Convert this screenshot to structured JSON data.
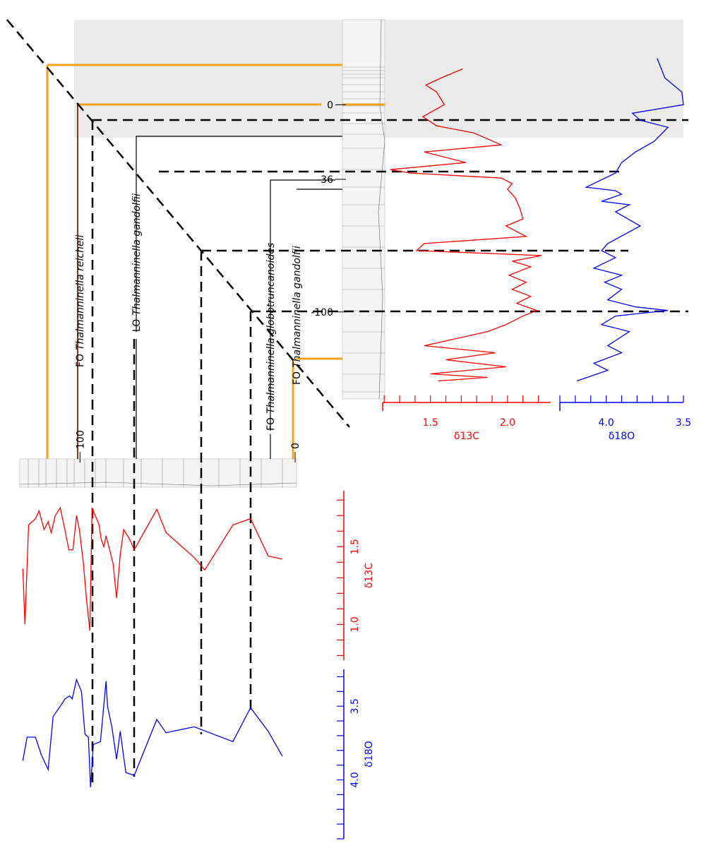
{
  "chart_data": [
    {
      "type": "line",
      "orientation": "vertical",
      "axis_label": "δ13C",
      "color": "#ff0000",
      "x": [
        17.3,
        13.6,
        9.5,
        6.1,
        0,
        -5.8,
        -10.2,
        -13.6,
        -19.4,
        -22.8,
        -27.9,
        -31.3,
        -33,
        -35.4,
        -38.1,
        -40.8,
        -44.9,
        -50,
        -55.1,
        -58.5,
        -63.6,
        -67,
        -70.4,
        -72.8,
        -75.5,
        -78.2,
        -82.3,
        -85.7,
        -89.1,
        -92.5,
        -95.9,
        -99.3,
        -102,
        -106.1,
        -109.5,
        -116.3,
        -119.7,
        -123.1,
        -126.5,
        -129.9,
        -131.6,
        -133.3
      ],
      "values": [
        1.71,
        1.59,
        1.47,
        1.54,
        1.59,
        1.45,
        1.54,
        1.78,
        1.96,
        1.46,
        1.73,
        1.24,
        1.37,
        1.96,
        2.03,
        2.0,
        2.05,
        2.08,
        2.1,
        1.99,
        2.12,
        1.46,
        1.41,
        2.22,
        2.03,
        2.15,
        2.01,
        2.12,
        2.03,
        2.15,
        2.06,
        2.19,
        2.1,
        1.99,
        1.87,
        1.46,
        1.92,
        1.6,
        1.99,
        1.5,
        1.87,
        1.55
      ],
      "xlim": [
        41,
        -142
      ],
      "xticks": [
        0,
        -36,
        -100
      ],
      "ylim": [
        1.19,
        2.28
      ],
      "yticks": [
        1.5,
        {
          "value": 2,
          "label": "2.0"
        }
      ],
      "yminor": [
        1.2,
        1.3,
        1.4,
        1.5,
        1.6,
        1.7,
        1.8,
        1.9,
        2.0,
        2.1,
        2.2
      ]
    },
    {
      "type": "line",
      "orientation": "vertical",
      "axis_label": "δ18O",
      "color": "#0000ff",
      "x": [
        22.4,
        12.9,
        6.1,
        0,
        -4.1,
        -7.5,
        -10.9,
        -17.7,
        -22.8,
        -27.9,
        -33,
        -39.8,
        -41.5,
        -43.2,
        -46.6,
        -48.3,
        -51.7,
        -58.5,
        -67,
        -70.4,
        -73.8,
        -78.9,
        -82.3,
        -85.7,
        -89.1,
        -94.2,
        -97.6,
        -99.3,
        -102,
        -106.1,
        -109.5,
        -116.3,
        -119.7,
        -124.8,
        -128.2,
        -133.3
      ],
      "values": [
        3.67,
        3.62,
        3.51,
        3.5,
        3.83,
        3.78,
        3.6,
        3.69,
        3.81,
        3.9,
        3.94,
        4.13,
        3.94,
        3.9,
        4.03,
        3.85,
        3.94,
        3.78,
        3.99,
        4.03,
        3.94,
        4.08,
        3.9,
        4.01,
        3.9,
        3.99,
        3.81,
        3.6,
        3.94,
        4.03,
        3.85,
        3.99,
        3.9,
        4.08,
        3.99,
        4.19
      ],
      "xlim": [
        41,
        -142
      ],
      "ylim": [
        4.3,
        3.5
      ],
      "yticks": [
        {
          "value": 4,
          "label": "4.0"
        },
        3.5
      ],
      "yminor": [
        4.3,
        4.2,
        4.1,
        4.0,
        3.9,
        3.8,
        3.7,
        3.6,
        3.5
      ]
    },
    {
      "type": "line",
      "orientation": "horizontal",
      "axis_label": "δ13C",
      "color": "#ff0000",
      "x": [
        126.6,
        125.6,
        123.9,
        120.7,
        119,
        116.7,
        114.8,
        113.4,
        111.5,
        109.2,
        107.5,
        105.2,
        103.3,
        101.6,
        100.3,
        98.4,
        97,
        95.4,
        94.4,
        91.1,
        90.2,
        88.9,
        87.9,
        86.2,
        84.6,
        83,
        81.3,
        79.7,
        77,
        74.8,
        64.3,
        60,
        46.9,
        42,
        28.9,
        20.7,
        12.5,
        5.9
      ],
      "values": [
        1.36,
        1.0,
        1.64,
        1.68,
        1.73,
        1.61,
        1.66,
        1.59,
        1.7,
        1.75,
        1.64,
        1.48,
        1.48,
        1.7,
        1.61,
        1.39,
        1.16,
        0.96,
        1.75,
        1.64,
        1.55,
        1.5,
        1.57,
        1.48,
        1.39,
        1.17,
        1.45,
        1.61,
        1.55,
        1.48,
        1.74,
        1.59,
        1.43,
        1.35,
        1.64,
        1.68,
        1.44,
        1.42
      ],
      "xlim": [
        128,
        0
      ],
      "xticks": [
        100,
        0
      ],
      "ylim": [
        1.86,
        0.77
      ],
      "yticks": [
        1.5,
        {
          "value": 1,
          "label": "1.0"
        }
      ],
      "yminor": [
        1.8,
        1.7,
        1.6,
        1.5,
        1.4,
        1.3,
        1.2,
        1.1,
        1.0,
        0.9,
        0.8
      ]
    },
    {
      "type": "line",
      "orientation": "horizontal",
      "axis_label": "δ18O",
      "color": "#0000ff",
      "x": [
        126.6,
        124.6,
        120.7,
        118,
        114.8,
        112.5,
        109.2,
        106.9,
        104.9,
        103.6,
        101.6,
        99.3,
        97.7,
        96.1,
        95.1,
        93.8,
        90.5,
        87.9,
        87.2,
        85.2,
        83,
        81.3,
        78.7,
        74.8,
        64.3,
        60,
        46.9,
        28.9,
        20.7,
        12.5,
        5.9
      ],
      "values": [
        3.87,
        3.71,
        3.71,
        3.83,
        3.93,
        3.57,
        3.5,
        3.45,
        3.43,
        3.45,
        3.32,
        3.4,
        3.69,
        3.71,
        4.05,
        3.76,
        3.74,
        3.33,
        3.5,
        3.64,
        3.86,
        3.67,
        3.95,
        3.97,
        3.59,
        3.68,
        3.64,
        3.74,
        3.51,
        3.67,
        3.84
      ],
      "xlim": [
        128,
        0
      ],
      "ylim": [
        3.25,
        4.4
      ],
      "yticks": [
        3.5,
        {
          "value": 4,
          "label": "4.0"
        }
      ],
      "yminor": [
        3.3,
        3.4,
        3.5,
        3.6,
        3.7,
        3.8,
        3.9,
        4.0,
        4.1,
        4.2,
        4.3,
        4.4
      ]
    }
  ],
  "annotations": [
    {
      "event": "FO",
      "taxon": "Thalmanninella reicheli"
    },
    {
      "event": "LO",
      "taxon": "Thalmanninella gandolfii"
    },
    {
      "event": "FO",
      "taxon": "Thalmanninella globotruncanoides"
    },
    {
      "event": "FO",
      "taxon": "Thalmanninella gandolfii"
    }
  ]
}
